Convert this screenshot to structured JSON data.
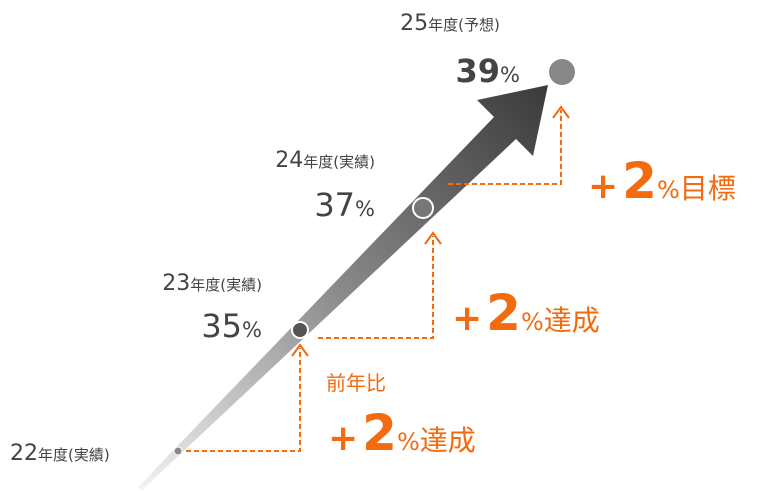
{
  "points": [
    {
      "year": "22",
      "period": "年度(実績)"
    },
    {
      "year": "23",
      "period": "年度(実績)",
      "rate": 35,
      "unit": "%"
    },
    {
      "year": "24",
      "period": "年度(実績)",
      "rate": 37,
      "unit": "%"
    },
    {
      "year": "25",
      "period": "年度(予想)",
      "rate": 39,
      "unit": "%"
    }
  ],
  "steps": [
    {
      "note": "前年比",
      "sign": "+",
      "value": 2,
      "unit": "%",
      "status": "達成"
    },
    {
      "sign": "+",
      "value": 2,
      "unit": "%",
      "status": "達成"
    },
    {
      "sign": "+",
      "value": 2,
      "unit": "%",
      "status": "目標"
    }
  ]
}
